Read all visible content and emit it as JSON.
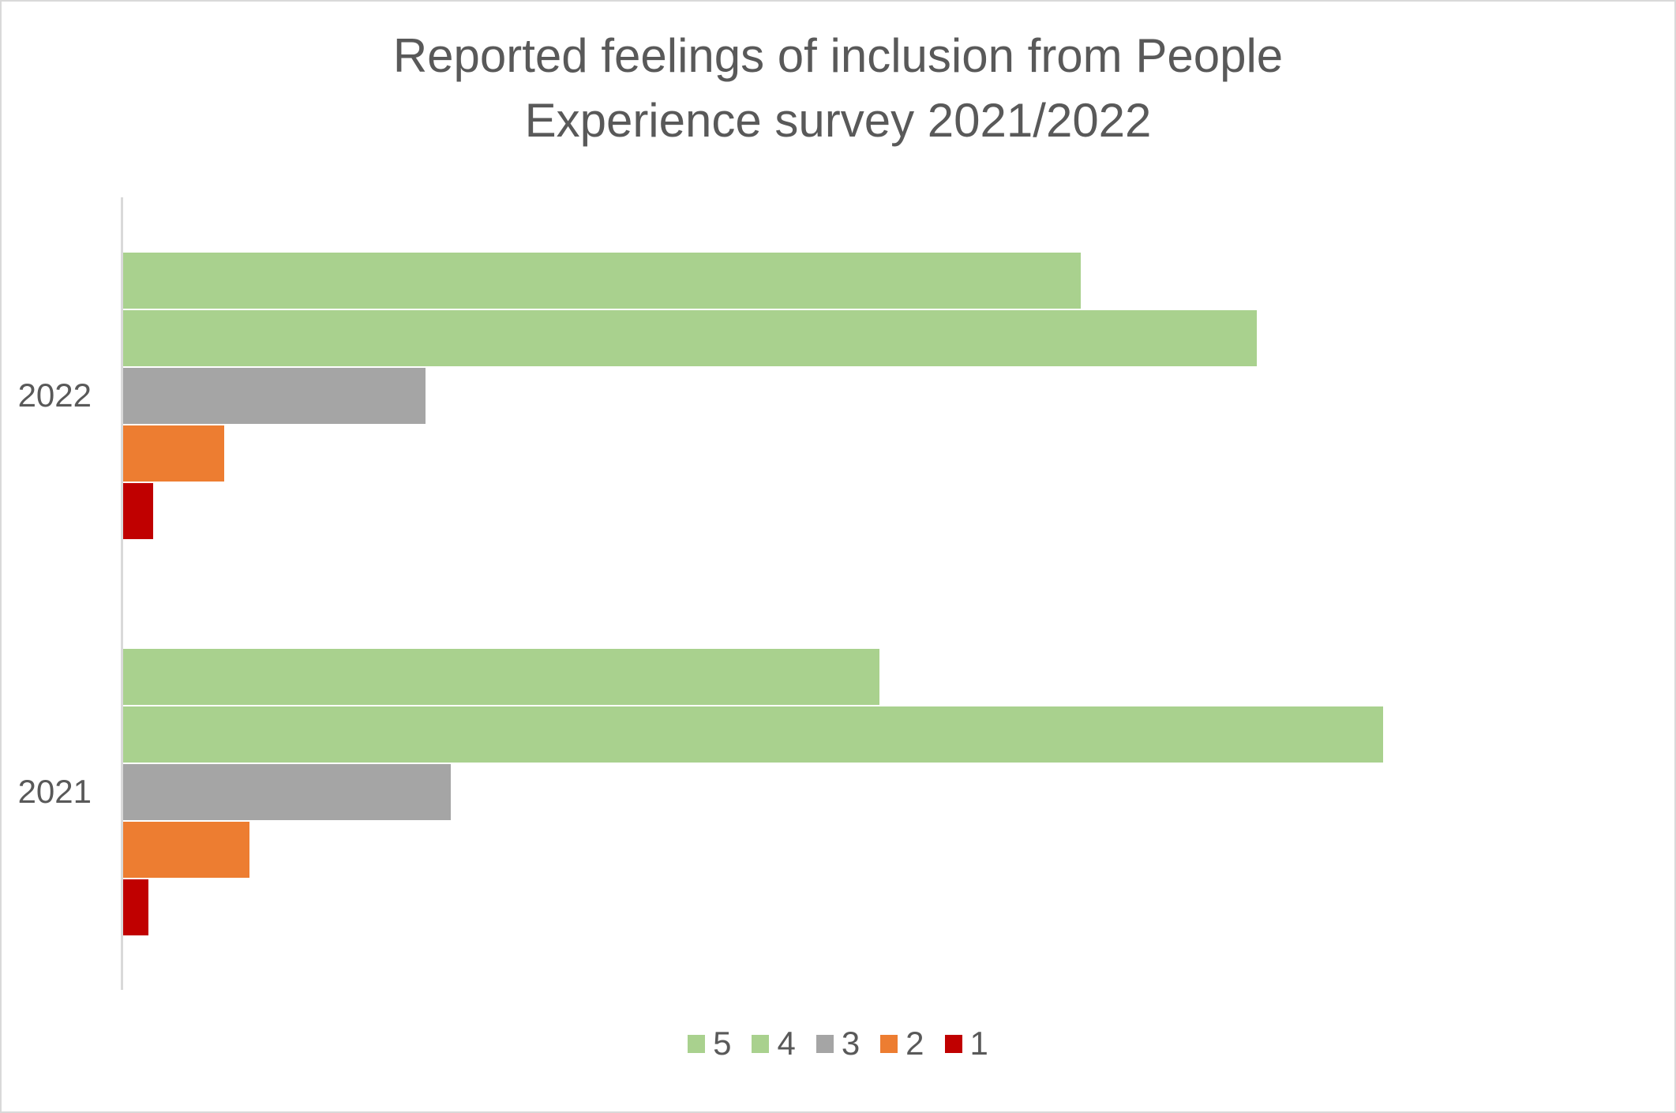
{
  "chart_data": {
    "type": "bar",
    "orientation": "horizontal",
    "title": "Reported feelings of inclusion from People Experience survey 2021/2022",
    "title_lines": [
      "Reported feelings of inclusion from People",
      "Experience survey 2021/2022"
    ],
    "categories": [
      "2022",
      "2021"
    ],
    "series": [
      {
        "name": "5",
        "color": "#A9D18E",
        "values": [
          38,
          30
        ]
      },
      {
        "name": "4",
        "color": "#A9D18E",
        "values": [
          45,
          50
        ]
      },
      {
        "name": "3",
        "color": "#A5A5A5",
        "values": [
          12,
          13
        ]
      },
      {
        "name": "2",
        "color": "#ED7D31",
        "values": [
          4,
          5
        ]
      },
      {
        "name": "1",
        "color": "#C00000",
        "values": [
          1.2,
          1
        ]
      }
    ],
    "bar_order_top_to_bottom": [
      "5",
      "4",
      "3",
      "2",
      "1"
    ],
    "xlim": [
      0,
      60
    ],
    "x_axis_labels_shown": false,
    "grid": false,
    "legend_position": "bottom",
    "legend_labels": [
      "5",
      "4",
      "3",
      "2",
      "1"
    ]
  },
  "colors": {
    "title_text": "#595959",
    "category_label_text": "#595959",
    "legend_text": "#595959",
    "axis_line": "#D9D9D9",
    "background": "#FFFFFF",
    "page_border": "#D9D9D9"
  }
}
